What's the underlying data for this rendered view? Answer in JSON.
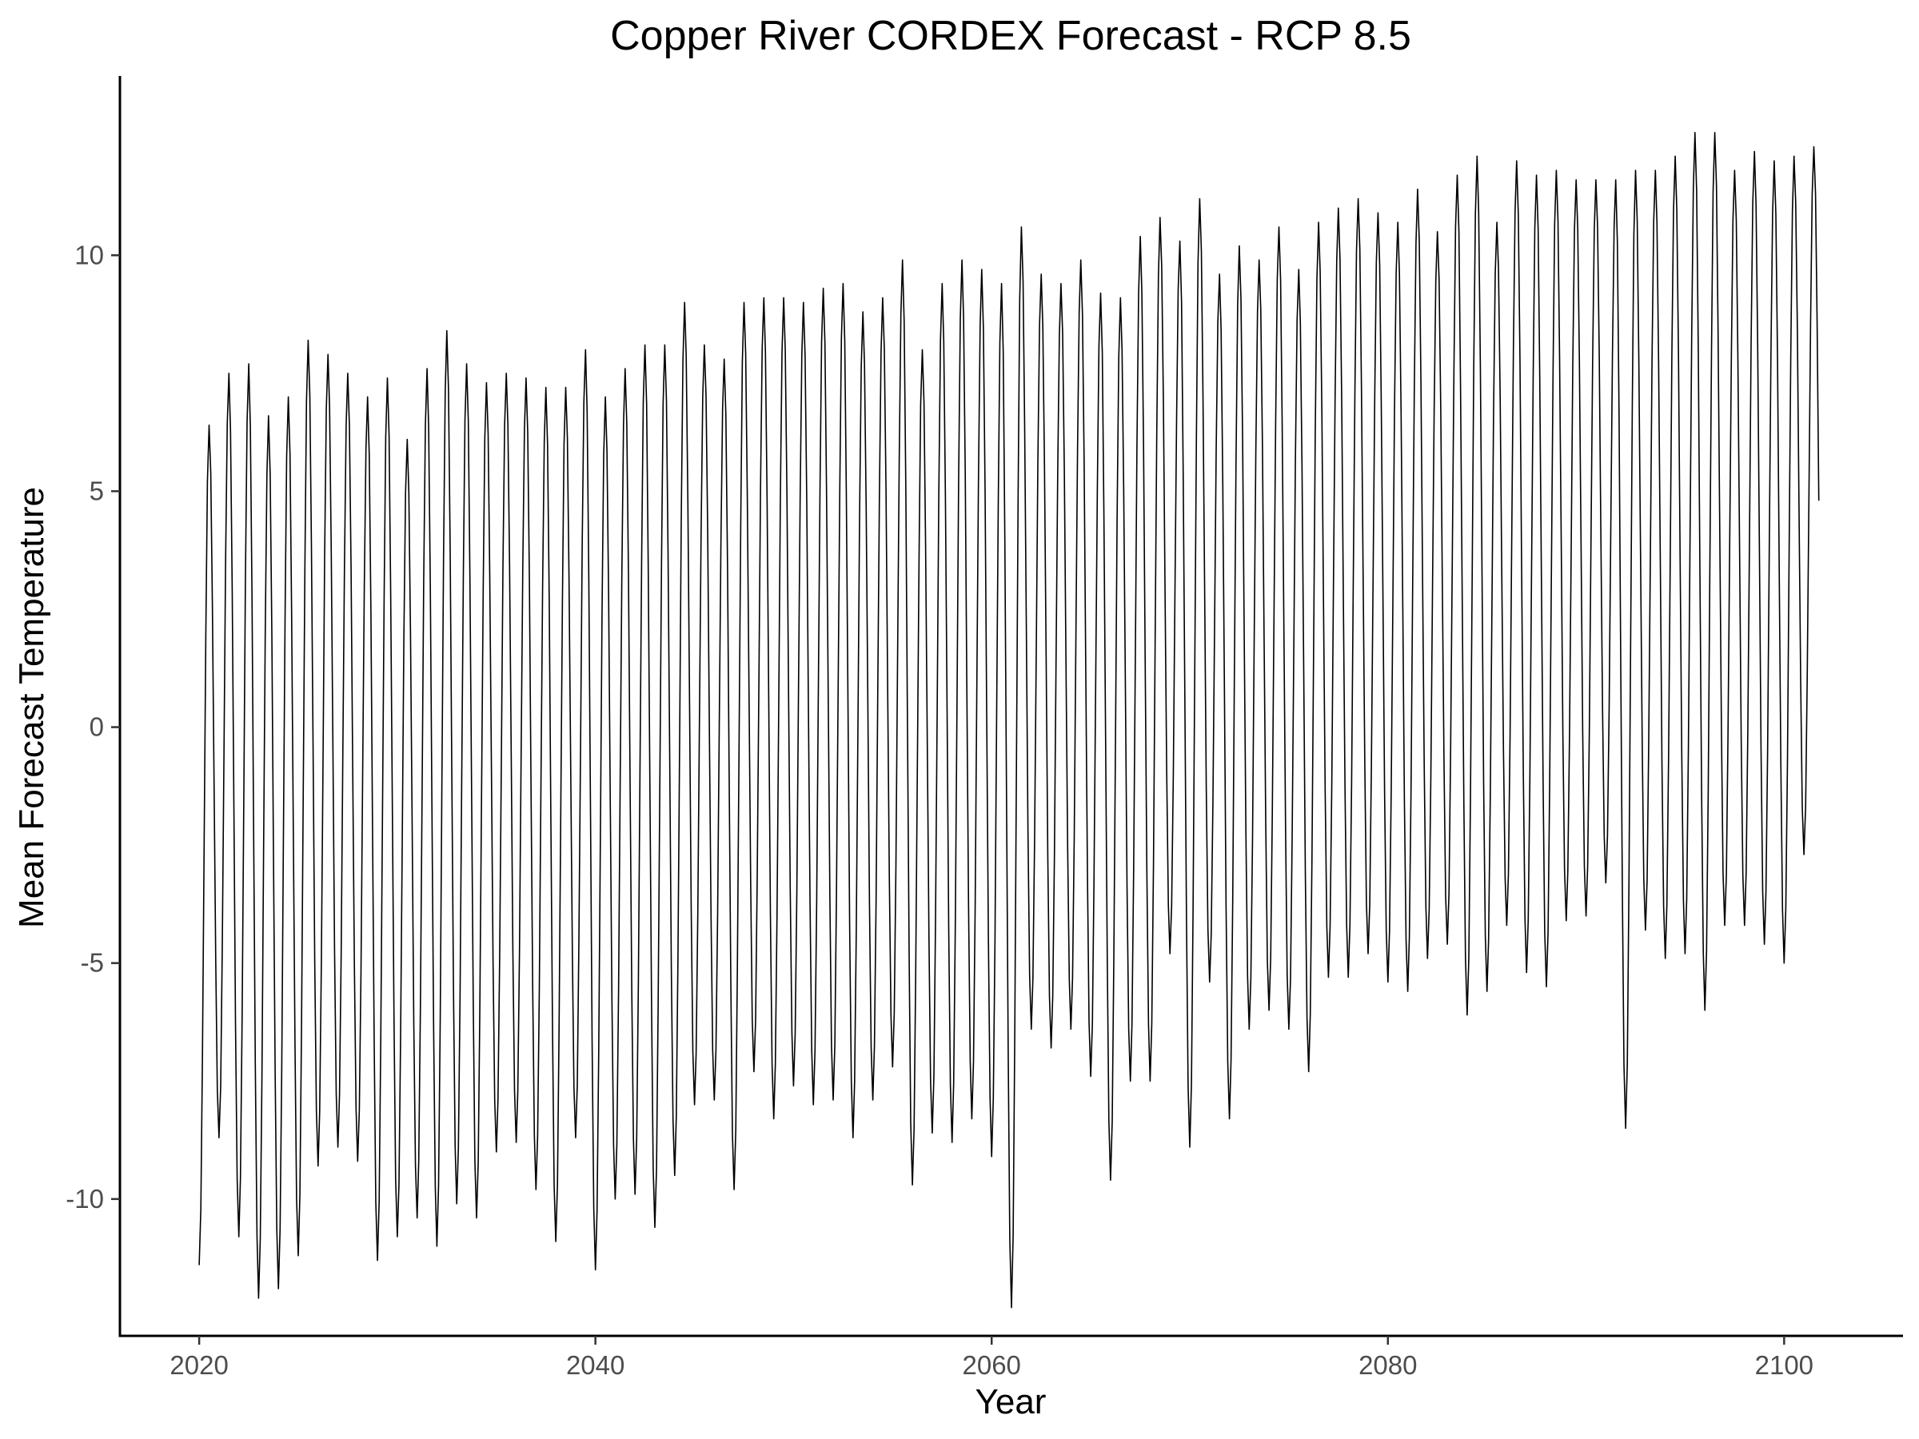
{
  "chart_data": {
    "type": "line",
    "title": "Copper River CORDEX Forecast - RCP 8.5",
    "xlabel": "Year",
    "ylabel": "Mean Forecast Temperature",
    "xlim": [
      2016,
      2106
    ],
    "ylim": [
      -12.9,
      13.8
    ],
    "xticks": [
      2020,
      2040,
      2060,
      2080,
      2100
    ],
    "yticks": [
      -10,
      -5,
      0,
      5,
      10
    ],
    "x_tick_labels": [
      "2020",
      "2040",
      "2060",
      "2080",
      "2100"
    ],
    "y_tick_labels": [
      "-10",
      "-5",
      "0",
      "5",
      "10"
    ],
    "grid": false,
    "legend": "none",
    "line_color": "#000000",
    "series": [
      {
        "x_start": 2020.0,
        "x_step": 0.0833333,
        "annual_max": [
          6.4,
          7.5,
          7.7,
          6.6,
          7.0,
          8.2,
          7.9,
          7.5,
          7.0,
          7.4,
          6.1,
          7.6,
          8.4,
          7.7,
          7.3,
          7.5,
          7.4,
          7.2,
          7.2,
          8.0,
          7.0,
          7.6,
          8.1,
          8.1,
          9.0,
          8.1,
          7.8,
          9.0,
          9.1,
          9.1,
          9.0,
          9.3,
          9.4,
          8.8,
          9.1,
          9.9,
          8.0,
          9.4,
          9.9,
          9.7,
          9.4,
          10.6,
          9.6,
          9.4,
          9.9,
          9.2,
          9.1,
          10.4,
          10.8,
          10.3,
          11.2,
          9.6,
          10.2,
          9.9,
          10.6,
          9.7,
          10.7,
          11.0,
          11.2,
          10.9,
          10.7,
          11.4,
          10.5,
          11.7,
          12.1,
          10.7,
          12.0,
          11.7,
          11.8,
          11.6,
          11.6,
          11.6,
          11.8,
          11.8,
          12.1,
          12.6,
          12.6,
          11.8,
          12.2,
          12.0,
          12.1,
          12.3
        ],
        "annual_min": [
          -11.4,
          -8.7,
          -10.8,
          -12.1,
          -11.9,
          -11.2,
          -9.3,
          -8.9,
          -9.2,
          -11.3,
          -10.8,
          -10.4,
          -11.0,
          -10.1,
          -10.4,
          -9.0,
          -8.8,
          -9.8,
          -10.9,
          -8.7,
          -11.5,
          -10.0,
          -9.9,
          -10.6,
          -9.5,
          -8.0,
          -7.9,
          -9.8,
          -7.3,
          -8.3,
          -7.6,
          -8.0,
          -7.9,
          -8.7,
          -7.9,
          -7.2,
          -9.7,
          -8.6,
          -8.8,
          -8.3,
          -9.1,
          -12.3,
          -6.4,
          -6.8,
          -6.4,
          -7.4,
          -9.6,
          -7.5,
          -7.5,
          -4.8,
          -8.9,
          -5.4,
          -8.3,
          -6.4,
          -6.0,
          -6.4,
          -7.3,
          -5.3,
          -5.3,
          -4.8,
          -5.4,
          -5.6,
          -4.9,
          -4.6,
          -6.1,
          -5.6,
          -4.2,
          -5.2,
          -5.5,
          -4.1,
          -4.0,
          -3.3,
          -8.5,
          -4.3,
          -4.9,
          -4.8,
          -6.0,
          -4.2,
          -4.2,
          -4.6,
          -5.0,
          -2.7
        ]
      }
    ]
  }
}
